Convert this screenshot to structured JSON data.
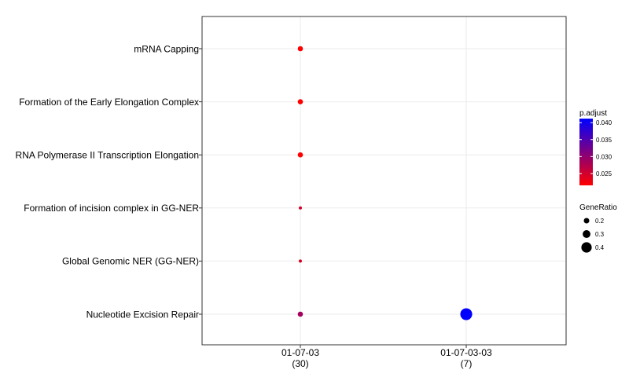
{
  "chart_data": {
    "type": "scatter",
    "x_categories": [
      {
        "line1": "01-07-03",
        "line2": "(30)"
      },
      {
        "line1": "01-07-03-03",
        "line2": "(7)"
      }
    ],
    "y_categories": [
      "mRNA Capping",
      "Formation of the Early Elongation Complex",
      "RNA Polymerase II Transcription Elongation",
      "Formation of incision complex in GG-NER",
      "Global Genomic NER (GG-NER)",
      "Nucleotide Excision Repair"
    ],
    "points": [
      {
        "x": "01-07-03",
        "y": "mRNA Capping",
        "gene_ratio": 0.2,
        "p_adjust": 0.0215
      },
      {
        "x": "01-07-03",
        "y": "Formation of the Early Elongation Complex",
        "gene_ratio": 0.2,
        "p_adjust": 0.0215
      },
      {
        "x": "01-07-03",
        "y": "RNA Polymerase II Transcription Elongation",
        "gene_ratio": 0.2,
        "p_adjust": 0.0215
      },
      {
        "x": "01-07-03",
        "y": "Formation of incision complex in GG-NER",
        "gene_ratio": 0.13,
        "p_adjust": 0.0245
      },
      {
        "x": "01-07-03",
        "y": "Global Genomic NER (GG-NER)",
        "gene_ratio": 0.13,
        "p_adjust": 0.0245
      },
      {
        "x": "01-07-03",
        "y": "Nucleotide Excision Repair",
        "gene_ratio": 0.2,
        "p_adjust": 0.0285
      },
      {
        "x": "01-07-03-03",
        "y": "Nucleotide Excision Repair",
        "gene_ratio": 0.43,
        "p_adjust": 0.0412
      }
    ],
    "legend_color": {
      "title": "p.adjust",
      "min": 0.0215,
      "max": 0.0412,
      "low_color": "#ff0000",
      "high_color": "#0000ff",
      "ticks": [
        {
          "value": 0.04,
          "label": "0.040"
        },
        {
          "value": 0.035,
          "label": "0.035"
        },
        {
          "value": 0.03,
          "label": "0.030"
        },
        {
          "value": 0.025,
          "label": "0.025"
        }
      ]
    },
    "legend_size": {
      "title": "GeneRatio",
      "entries": [
        {
          "value": 0.2,
          "label": "0.2"
        },
        {
          "value": 0.3,
          "label": "0.3"
        },
        {
          "value": 0.4,
          "label": "0.4"
        }
      ]
    },
    "grid": true,
    "legend_position": "right"
  }
}
